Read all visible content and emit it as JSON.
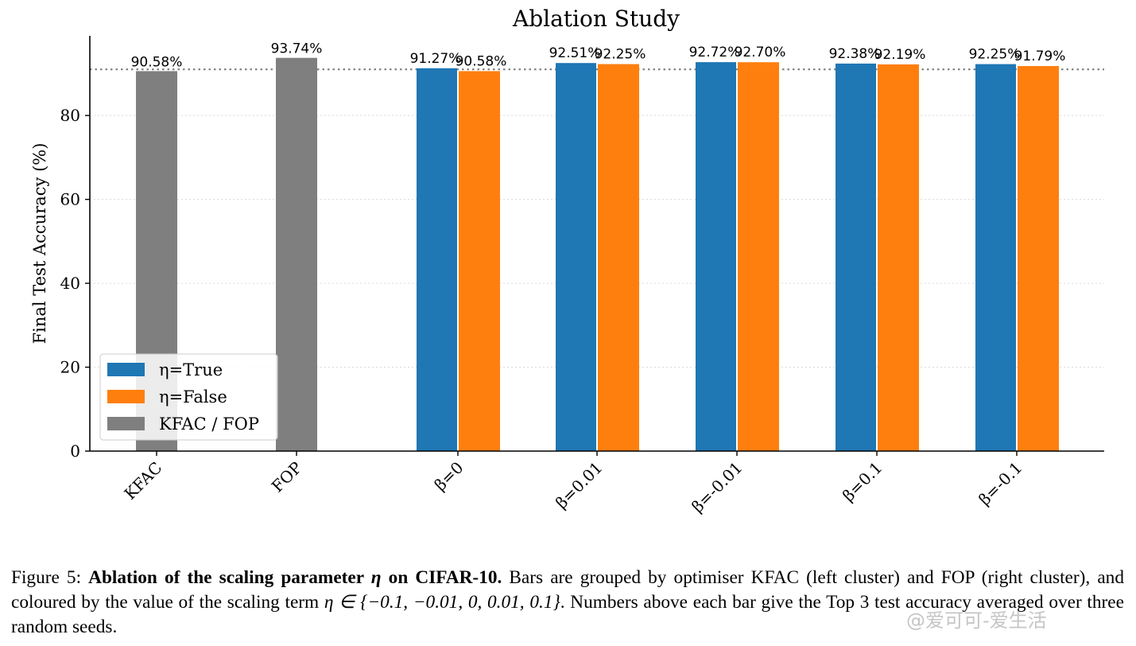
{
  "chart_data": {
    "type": "bar",
    "title": "Ablation Study",
    "ylabel": "Final Test Accuracy (%)",
    "xlabel": "",
    "ylim": [
      0,
      99
    ],
    "yticks": [
      0,
      20,
      40,
      60,
      80
    ],
    "grid": "horizontal dotted",
    "categories": [
      "KFAC",
      "FOP",
      "β=0",
      "β=0.01",
      "β=-0.01",
      "β=0.1",
      "β=-0.1"
    ],
    "series": [
      {
        "name": "η=True",
        "color": "#1f77b4",
        "values": [
          null,
          null,
          91.27,
          92.51,
          92.72,
          92.38,
          92.25
        ]
      },
      {
        "name": "η=False",
        "color": "#ff7f0e",
        "values": [
          null,
          null,
          90.58,
          92.25,
          92.7,
          92.19,
          91.79
        ]
      },
      {
        "name": "KFAC / FOP",
        "color": "#7f7f7f",
        "values": [
          90.58,
          93.74,
          null,
          null,
          null,
          null,
          null
        ]
      }
    ],
    "value_labels": [
      [
        "90.58%"
      ],
      [
        "93.74%"
      ],
      [
        "91.27%",
        "90.58%"
      ],
      [
        "92.51%",
        "92.25%"
      ],
      [
        "92.72%",
        "92.70%"
      ],
      [
        "92.38%",
        "92.19%"
      ],
      [
        "92.25%",
        "91.79%"
      ]
    ],
    "reference_line": {
      "value": 91,
      "style": "dotted",
      "color": "#7f7f7f"
    },
    "legend_placement": "lower-left"
  },
  "caption": {
    "prefix": "Figure 5: ",
    "bold": "Ablation of the scaling parameter ",
    "bold_math": "η",
    "bold_end": " on CIFAR-10.",
    "body1": " Bars are grouped by optimiser KFAC (left cluster) and FOP (right cluster), and coloured by the value of the scaling term ",
    "math": "η ∈ {−0.1, −0.01, 0, 0.01, 0.1}",
    "body2": ". Numbers above each bar give the Top 3 test accuracy averaged over three random seeds."
  },
  "watermark": "@爱可可-爱生活"
}
